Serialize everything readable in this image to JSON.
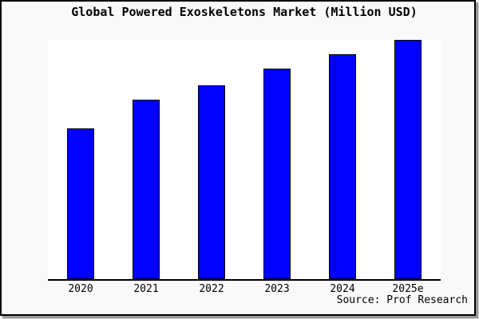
{
  "frame": {
    "background": "#f9f9f9",
    "border_color": "#000000",
    "shadow_dark": "#9a9a9a",
    "shadow_light": "#cfcfcf"
  },
  "chart_data": {
    "type": "bar",
    "title": "Global Powered Exoskeletons Market (Million USD)",
    "categories": [
      "2020",
      "2021",
      "2022",
      "2023",
      "2024",
      "2025e"
    ],
    "values": [
      63,
      75,
      81,
      88,
      94,
      100
    ],
    "ylim": [
      0,
      100
    ],
    "xlabel": "",
    "ylabel": "",
    "grid": false,
    "legend": false,
    "y_axis_shown": false,
    "values_note": "no numeric labels shown; values estimated as relative index, 2025e = 100",
    "bar_color": "#0000ff",
    "bar_border_color": "#000000",
    "plot_background": "#ffffff",
    "source_note": "Source: Prof Research"
  }
}
